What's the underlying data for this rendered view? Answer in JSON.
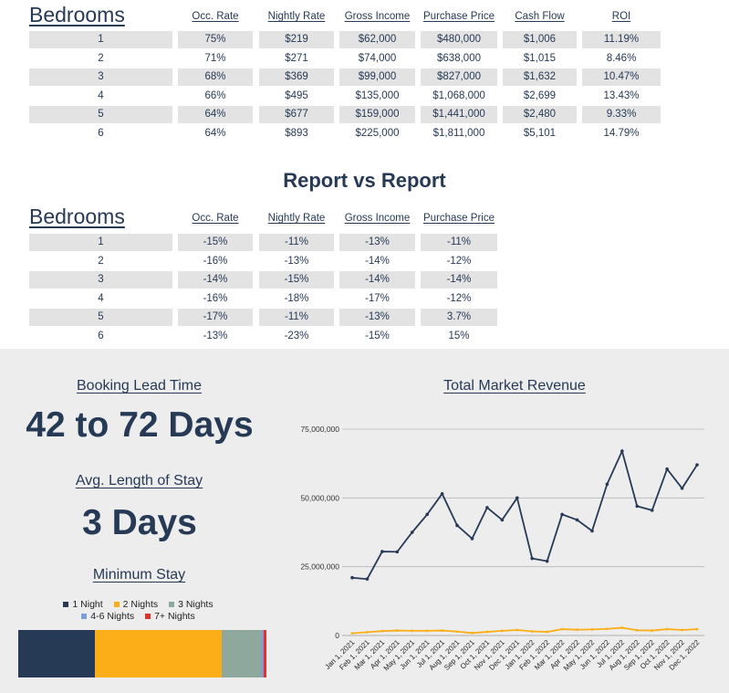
{
  "table1": {
    "title": "Bedrooms",
    "columns": [
      "Occ. Rate",
      "Nightly Rate",
      "Gross Income",
      "Purchase Price",
      "Cash Flow",
      "ROI"
    ],
    "rows": [
      [
        "1",
        "75%",
        "$219",
        "$62,000",
        "$480,000",
        "$1,006",
        "11.19%"
      ],
      [
        "2",
        "71%",
        "$271",
        "$74,000",
        "$638,000",
        "$1,015",
        "8.46%"
      ],
      [
        "3",
        "68%",
        "$369",
        "$99,000",
        "$827,000",
        "$1,632",
        "10.47%"
      ],
      [
        "4",
        "66%",
        "$495",
        "$135,000",
        "$1,068,000",
        "$2,699",
        "13.43%"
      ],
      [
        "5",
        "64%",
        "$677",
        "$159,000",
        "$1,441,000",
        "$2,480",
        "9.33%"
      ],
      [
        "6",
        "64%",
        "$893",
        "$225,000",
        "$1,811,000",
        "$5,101",
        "14.79%"
      ]
    ]
  },
  "report_title": "Report vs Report",
  "table2": {
    "title": "Bedrooms",
    "columns": [
      "Occ. Rate",
      "Nightly Rate",
      "Gross Income",
      "Purchase Price"
    ],
    "rows": [
      [
        "1",
        "-15%",
        "-11%",
        "-13%",
        "-11%"
      ],
      [
        "2",
        "-16%",
        "-13%",
        "-14%",
        "-12%"
      ],
      [
        "3",
        "-14%",
        "-15%",
        "-14%",
        "-14%"
      ],
      [
        "4",
        "-16%",
        "-18%",
        "-17%",
        "-12%"
      ],
      [
        "5",
        "-17%",
        "-11%",
        "-13%",
        "3.7%"
      ],
      [
        "6",
        "-13%",
        "-23%",
        "-15%",
        "15%"
      ]
    ]
  },
  "booking_lead_time": {
    "label": "Booking Lead Time",
    "value": "42 to 72 Days"
  },
  "avg_length_of_stay": {
    "label": "Avg. Length of Stay",
    "value": "3 Days"
  },
  "minimum_stay": {
    "label": "Minimum Stay",
    "legend": [
      {
        "name": "1 Night",
        "color": "#263a56",
        "share": 0.31
      },
      {
        "name": "2 Nights",
        "color": "#fbae17",
        "share": 0.51
      },
      {
        "name": "3 Nights",
        "color": "#8fa89e",
        "share": 0.16
      },
      {
        "name": "4-6 Nights",
        "color": "#7b9be0",
        "share": 0.01
      },
      {
        "name": "7+ Nights",
        "color": "#e0312b",
        "share": 0.01
      }
    ]
  },
  "total_market_revenue": {
    "label": "Total Market Revenue"
  },
  "chart_data": {
    "type": "line",
    "title": "Total Market Revenue",
    "x": [
      "Jan 1, 2021",
      "Feb 1, 2021",
      "Mar 1, 2021",
      "Apr 1, 2021",
      "May 1, 2021",
      "Jun 1, 2021",
      "Jul 1, 2021",
      "Aug 1, 2021",
      "Sep 1, 2021",
      "Oct 1, 2021",
      "Nov 1, 2021",
      "Dec 1, 2021",
      "Jan 1, 2022",
      "Feb 1, 2022",
      "Mar 1, 2022",
      "Apr 1, 2022",
      "May 1, 2022",
      "Jun 1, 2022",
      "Jul 1, 2022",
      "Aug 1, 2022",
      "Sep 1, 2022",
      "Oct 1, 2022",
      "Nov 1, 2022",
      "Dec 1, 2022"
    ],
    "series": [
      {
        "color": "#263a56",
        "values": [
          21000000,
          20500000,
          30500000,
          30400000,
          37500000,
          44000000,
          51500000,
          40000000,
          35200000,
          46500000,
          42000000,
          50000000,
          28000000,
          27000000,
          44000000,
          42000000,
          38000000,
          55000000,
          67000000,
          47000000,
          45500000,
          60500000,
          53500000,
          62000000
        ]
      },
      {
        "color": "#fbae17",
        "values": [
          800000,
          1200000,
          1600000,
          1800000,
          1700000,
          1700000,
          1800000,
          1400000,
          900000,
          1300000,
          1700000,
          2000000,
          1500000,
          1300000,
          2300000,
          2100000,
          2200000,
          2400000,
          2800000,
          1900000,
          1800000,
          2300000,
          2000000,
          2300000
        ]
      }
    ],
    "yticks": [
      "0",
      "25,000,000",
      "50,000,000",
      "75,000,000"
    ],
    "ylim": [
      0,
      75000000
    ],
    "grid": true
  }
}
